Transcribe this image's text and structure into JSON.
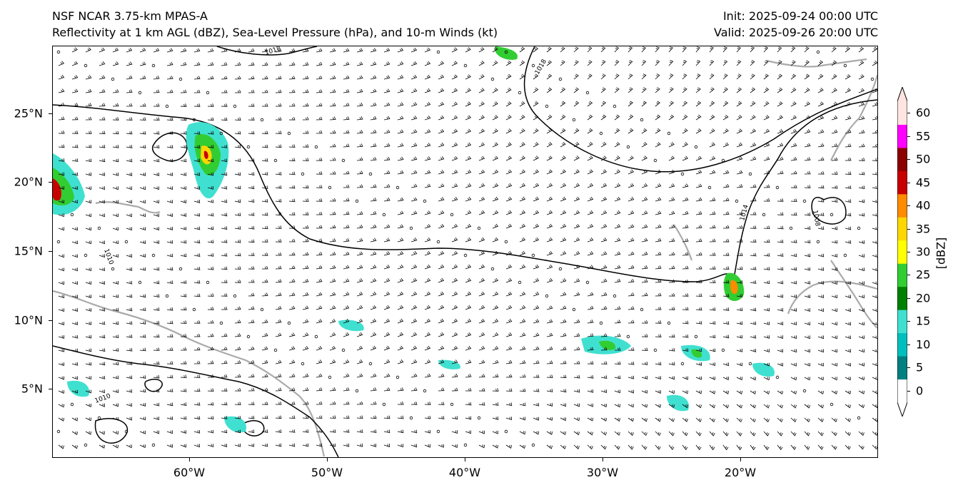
{
  "header": {
    "title_line1": "NSF NCAR 3.75-km MPAS-A",
    "title_line2": "Reflectivity at 1 km AGL (dBZ), Sea-Level Pressure (hPa), and 10-m Winds (kt)",
    "init": "Init: 2025-09-24 00:00 UTC",
    "valid": "Valid: 2025-09-26 20:00 UTC"
  },
  "axes": {
    "lon_ticks": [
      "60°W",
      "50°W",
      "40°W",
      "30°W",
      "20°W"
    ],
    "lat_ticks": [
      "25°N",
      "20°N",
      "15°N",
      "10°N",
      "5°N"
    ]
  },
  "isobar_labels": [
    "1018",
    "1018",
    "1014",
    "1010",
    "1010",
    "1008"
  ],
  "colorbar": {
    "label": "[dBZ]",
    "ticks": [
      "0",
      "5",
      "10",
      "15",
      "20",
      "25",
      "30",
      "35",
      "40",
      "45",
      "50",
      "55",
      "60"
    ],
    "colors": [
      "#ffffff",
      "#008080",
      "#00bfbf",
      "#40e0d0",
      "#008000",
      "#32cd32",
      "#ffff00",
      "#ffd700",
      "#ff8c00",
      "#c80000",
      "#8b0000",
      "#ff00ff",
      "#ffe4e1"
    ]
  }
}
